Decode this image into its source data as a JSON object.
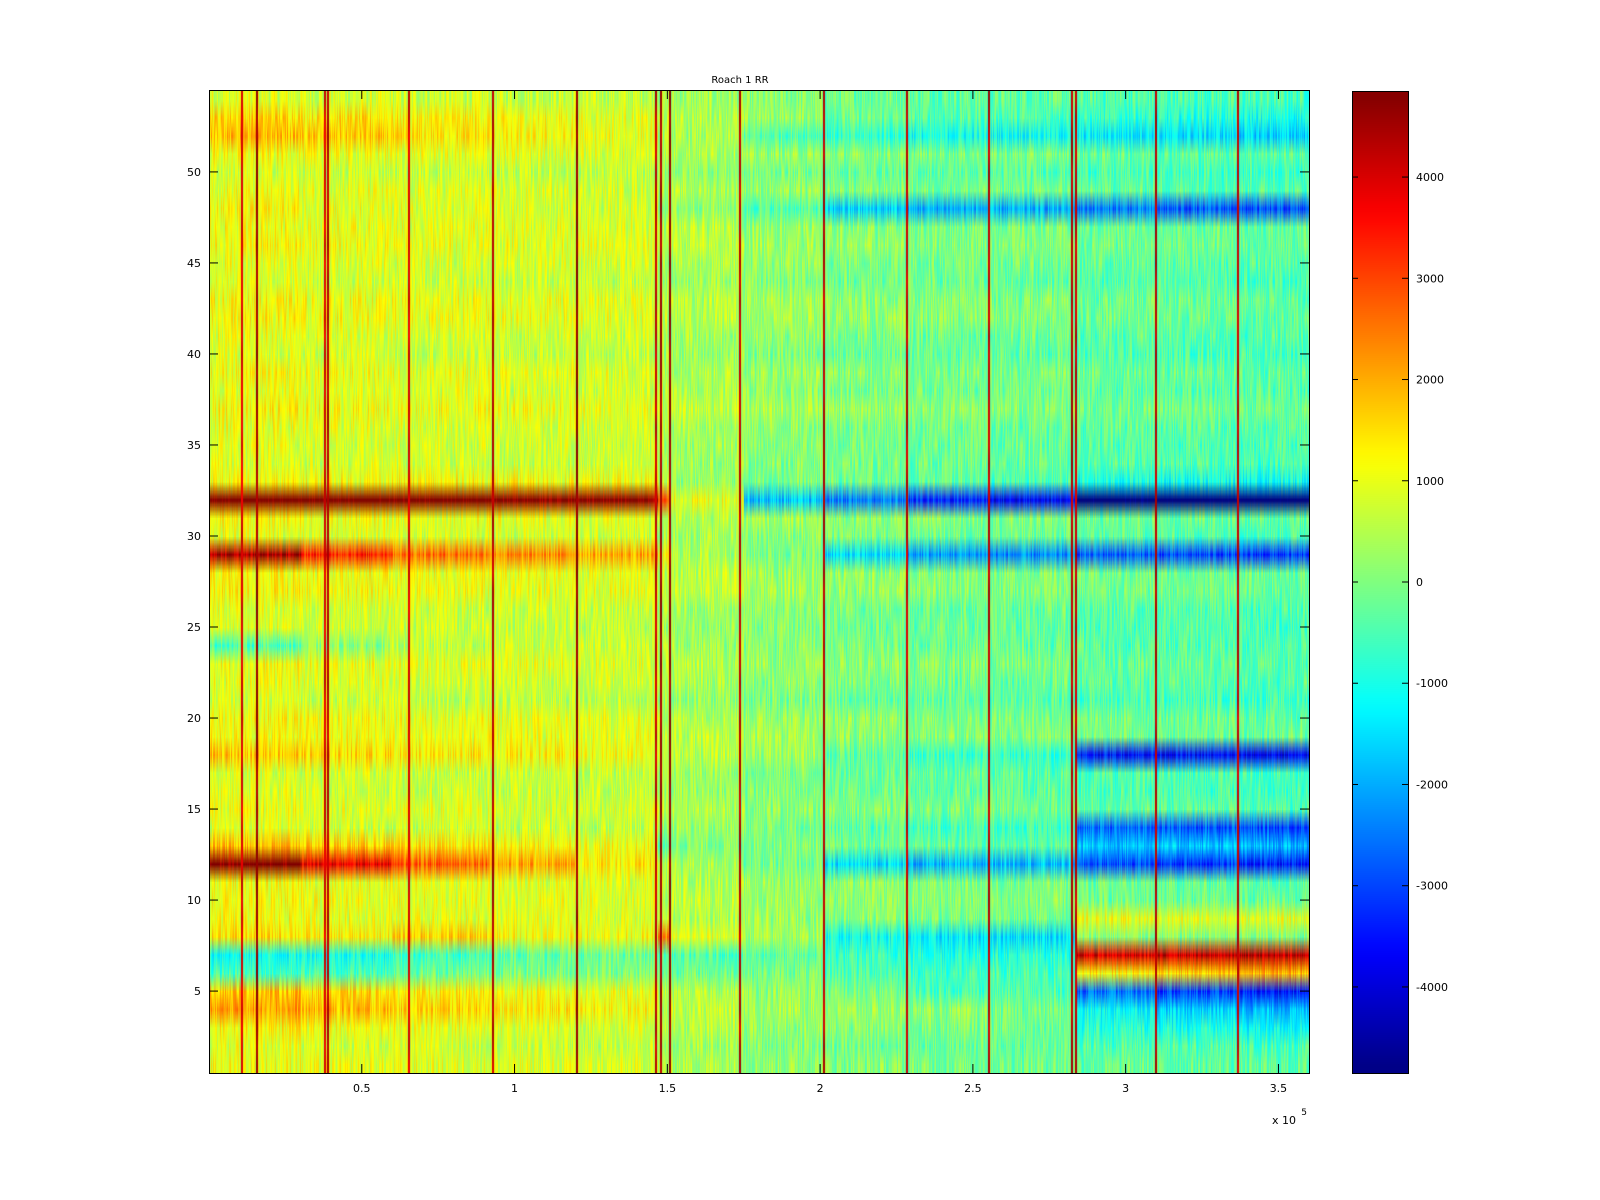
{
  "chart_data": {
    "type": "heatmap",
    "title": "Roach 1 RR",
    "xlabel": "",
    "ylabel": "",
    "x_range": [
      0,
      360000
    ],
    "y_range": [
      0.5,
      54.5
    ],
    "rows": 54,
    "x_ticks": [
      {
        "value": 50000,
        "label": "0.5"
      },
      {
        "value": 100000,
        "label": "1"
      },
      {
        "value": 150000,
        "label": "1.5"
      },
      {
        "value": 200000,
        "label": "2"
      },
      {
        "value": 250000,
        "label": "2.5"
      },
      {
        "value": 300000,
        "label": "3"
      },
      {
        "value": 350000,
        "label": "3.5"
      }
    ],
    "x_exponent_base": "x 10",
    "x_exponent_power": "5",
    "y_ticks": [
      {
        "value": 5,
        "label": "5"
      },
      {
        "value": 10,
        "label": "10"
      },
      {
        "value": 15,
        "label": "15"
      },
      {
        "value": 20,
        "label": "20"
      },
      {
        "value": 25,
        "label": "25"
      },
      {
        "value": 30,
        "label": "30"
      },
      {
        "value": 35,
        "label": "35"
      },
      {
        "value": 40,
        "label": "40"
      },
      {
        "value": 45,
        "label": "45"
      },
      {
        "value": 50,
        "label": "50"
      }
    ],
    "colorbar": {
      "colormap": "jet",
      "range": [
        -4850,
        4850
      ],
      "ticks": [
        {
          "value": 4000,
          "label": "4000"
        },
        {
          "value": 3000,
          "label": "3000"
        },
        {
          "value": 2000,
          "label": "2000"
        },
        {
          "value": 1000,
          "label": "1000"
        },
        {
          "value": 0,
          "label": "0"
        },
        {
          "value": -1000,
          "label": "-1000"
        },
        {
          "value": -2000,
          "label": "-2000"
        },
        {
          "value": -3000,
          "label": "-3000"
        },
        {
          "value": -4000,
          "label": "-4000"
        }
      ]
    },
    "segment_breaks": [
      0,
      10000,
      30000,
      60000,
      92000,
      120000,
      147000,
      151000,
      175000,
      201000,
      228000,
      255000,
      284000,
      310000,
      337000,
      360000
    ],
    "column_baseline": [
      1000,
      1000,
      900,
      850,
      800,
      750,
      450,
      400,
      150,
      0,
      -100,
      -150,
      -300,
      -350,
      -400
    ],
    "row_offsets": [
      {
        "row": 2,
        "values": [
          0,
          0,
          0,
          0,
          0,
          0,
          0,
          0,
          0,
          0,
          0,
          0,
          0,
          0,
          0
        ]
      },
      {
        "row": 3,
        "values": [
          200,
          200,
          100,
          100,
          0,
          0,
          0,
          0,
          0,
          0,
          0,
          0,
          -600,
          -700,
          -800
        ]
      },
      {
        "row": 4,
        "values": [
          900,
          900,
          700,
          500,
          300,
          200,
          0,
          0,
          0,
          0,
          0,
          -200,
          -1100,
          -1500,
          -1700
        ]
      },
      {
        "row": 5,
        "values": [
          700,
          700,
          500,
          300,
          200,
          100,
          0,
          0,
          0,
          -200,
          -500,
          -400,
          -2400,
          -2800,
          -3100
        ]
      },
      {
        "row": 6,
        "values": [
          -1700,
          -1700,
          -1500,
          -1100,
          -900,
          -800,
          -600,
          -600,
          -300,
          -500,
          -600,
          -500,
          1500,
          1800,
          2200
        ]
      },
      {
        "row": 7,
        "values": [
          -1900,
          -1900,
          -1700,
          -1300,
          -900,
          -800,
          -700,
          -700,
          -300,
          -500,
          -600,
          -500,
          4400,
          4600,
          4800
        ]
      },
      {
        "row": 8,
        "values": [
          300,
          300,
          200,
          600,
          200,
          200,
          1800,
          300,
          0,
          -1200,
          -1500,
          -1500,
          200,
          200,
          200
        ]
      },
      {
        "row": 9,
        "values": [
          0,
          0,
          0,
          0,
          0,
          0,
          0,
          0,
          0,
          0,
          0,
          0,
          1200,
          1200,
          1200
        ]
      },
      {
        "row": 12,
        "values": [
          4000,
          4000,
          3000,
          2000,
          1300,
          700,
          100,
          100,
          -200,
          -1400,
          -1800,
          -1600,
          -2500,
          -2700,
          -2900
        ]
      },
      {
        "row": 13,
        "values": [
          700,
          700,
          600,
          400,
          300,
          200,
          -1200,
          -500,
          -200,
          -300,
          -300,
          -300,
          -1500,
          -1500,
          -1600
        ]
      },
      {
        "row": 14,
        "values": [
          0,
          0,
          0,
          0,
          0,
          0,
          0,
          0,
          0,
          -200,
          -300,
          -300,
          -2200,
          -2300,
          -2400
        ]
      },
      {
        "row": 18,
        "values": [
          600,
          600,
          500,
          400,
          300,
          200,
          0,
          0,
          0,
          -500,
          -700,
          -700,
          -3300,
          -3400,
          -3500
        ]
      },
      {
        "row": 24,
        "values": [
          -1400,
          -1400,
          -700,
          -200,
          0,
          0,
          0,
          0,
          0,
          0,
          0,
          0,
          0,
          0,
          0
        ]
      },
      {
        "row": 29,
        "values": [
          3500,
          3500,
          2500,
          1800,
          1500,
          1300,
          600,
          100,
          -100,
          -1500,
          -2000,
          -2200,
          -2400,
          -2600,
          -2700
        ]
      },
      {
        "row": 32,
        "values": [
          4300,
          4300,
          4400,
          4400,
          4300,
          4300,
          2500,
          800,
          -1800,
          -2300,
          -3000,
          -3400,
          -4700,
          -4800,
          -4800
        ]
      },
      {
        "row": 33,
        "values": [
          300,
          300,
          400,
          500,
          500,
          500,
          300,
          0,
          0,
          0,
          0,
          -200,
          -500,
          -500,
          -500
        ]
      },
      {
        "row": 48,
        "values": [
          400,
          400,
          300,
          300,
          200,
          200,
          0,
          0,
          -400,
          -1500,
          -1700,
          -1700,
          -2000,
          -2300,
          -2400
        ]
      },
      {
        "row": 52,
        "values": [
          900,
          900,
          800,
          600,
          400,
          300,
          0,
          0,
          -500,
          -700,
          -900,
          -900,
          -1000,
          -1100,
          -1200
        ]
      },
      {
        "row": 53,
        "values": [
          500,
          500,
          400,
          300,
          200,
          100,
          0,
          0,
          0,
          -300,
          -400,
          -400,
          -500,
          -600,
          -700
        ]
      }
    ],
    "vertical_stripes": [
      {
        "x": 10500,
        "value": 4000
      },
      {
        "x": 15500,
        "value": 4600
      },
      {
        "x": 37500,
        "value": 4000
      },
      {
        "x": 38500,
        "value": 4300
      },
      {
        "x": 65000,
        "value": 4000
      },
      {
        "x": 92500,
        "value": 4300
      },
      {
        "x": 120000,
        "value": 4700
      },
      {
        "x": 146000,
        "value": 4200
      },
      {
        "x": 147500,
        "value": 4500
      },
      {
        "x": 150500,
        "value": 4700
      },
      {
        "x": 173500,
        "value": 4300
      },
      {
        "x": 201000,
        "value": 4300
      },
      {
        "x": 228000,
        "value": 4200
      },
      {
        "x": 255000,
        "value": 4300
      },
      {
        "x": 282000,
        "value": 4300
      },
      {
        "x": 283500,
        "value": 4200
      },
      {
        "x": 309500,
        "value": 4300
      },
      {
        "x": 336500,
        "value": 4200
      }
    ],
    "noise_amplitude": 650
  }
}
